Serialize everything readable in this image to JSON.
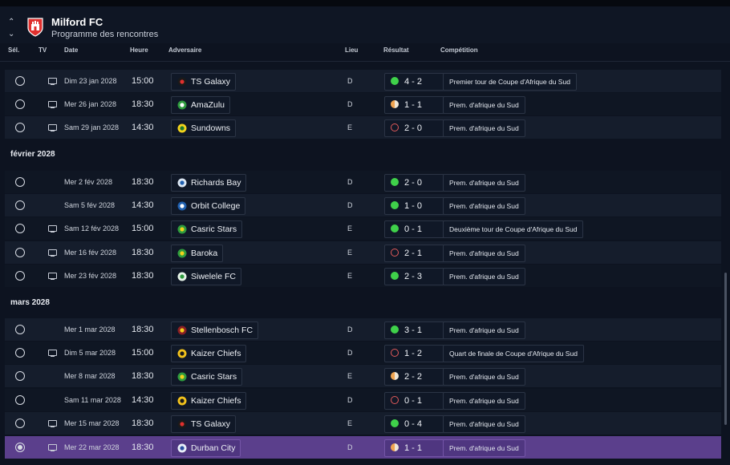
{
  "header": {
    "club_name": "Milford FC",
    "page_title": "Programme des rencontres",
    "collapse_icon": "chevron-up-icon",
    "expand_icon": "chevron-down-icon"
  },
  "columns": {
    "sel": "Sél.",
    "tv": "TV",
    "date": "Date",
    "time": "Heure",
    "opponent": "Adversaire",
    "venue": "Lieu",
    "result": "Résultat",
    "competition": "Compétition"
  },
  "months": {
    "february": "février 2028",
    "march": "mars 2028"
  },
  "fixtures": [
    {
      "tv": true,
      "date": "Dim 23 jan 2028",
      "time": "15:00",
      "opponent": "TS Galaxy",
      "venue": "D",
      "outcome": "win",
      "score": "4 - 2",
      "competition": "Premier tour de Coupe d'Afrique du Sud",
      "badge_color": "#1a1a1a",
      "badge_accent": "#e0302e"
    },
    {
      "tv": true,
      "date": "Mer 26 jan 2028",
      "time": "18:30",
      "opponent": "AmaZulu",
      "venue": "D",
      "outcome": "draw",
      "score": "1 - 1",
      "competition": "Prem. d'afrique du Sud",
      "badge_color": "#2e9b3e",
      "badge_accent": "#ffffff"
    },
    {
      "tv": true,
      "date": "Sam 29 jan 2028",
      "time": "14:30",
      "opponent": "Sundowns",
      "venue": "E",
      "outcome": "loss",
      "score": "2 - 0",
      "competition": "Prem. d'afrique du Sud",
      "badge_color": "#f2d21c",
      "badge_accent": "#1d7a2e"
    },
    {
      "tv": false,
      "date": "Mer 2 fév 2028",
      "time": "18:30",
      "opponent": "Richards Bay",
      "venue": "D",
      "outcome": "win",
      "score": "2 - 0",
      "competition": "Prem. d'afrique du Sud",
      "badge_color": "#dbe6f2",
      "badge_accent": "#1f5fae"
    },
    {
      "tv": false,
      "date": "Sam 5 fév 2028",
      "time": "14:30",
      "opponent": "Orbit College",
      "venue": "D",
      "outcome": "win",
      "score": "1 - 0",
      "competition": "Prem. d'afrique du Sud",
      "badge_color": "#1f5fae",
      "badge_accent": "#ffffff"
    },
    {
      "tv": true,
      "date": "Sam 12 fév 2028",
      "time": "15:00",
      "opponent": "Casric Stars",
      "venue": "E",
      "outcome": "win",
      "score": "0 - 1",
      "competition": "Deuxième tour de Coupe d'Afrique du Sud",
      "badge_color": "#2e9b3e",
      "badge_accent": "#f2d21c"
    },
    {
      "tv": true,
      "date": "Mer 16 fév 2028",
      "time": "18:30",
      "opponent": "Baroka",
      "venue": "E",
      "outcome": "loss",
      "score": "2 - 1",
      "competition": "Prem. d'afrique du Sud",
      "badge_color": "#2e9b3e",
      "badge_accent": "#f2d21c"
    },
    {
      "tv": true,
      "date": "Mer 23 fév 2028",
      "time": "18:30",
      "opponent": "Siwelele FC",
      "venue": "E",
      "outcome": "win",
      "score": "2 - 3",
      "competition": "Prem. d'afrique du Sud",
      "badge_color": "#e6f2e8",
      "badge_accent": "#2e9b3e"
    },
    {
      "tv": false,
      "date": "Mer 1 mar 2028",
      "time": "18:30",
      "opponent": "Stellenbosch FC",
      "venue": "D",
      "outcome": "win",
      "score": "3 - 1",
      "competition": "Prem. d'afrique du Sud",
      "badge_color": "#8a1f24",
      "badge_accent": "#f2d21c"
    },
    {
      "tv": true,
      "date": "Dim 5 mar 2028",
      "time": "15:00",
      "opponent": "Kaizer Chiefs",
      "venue": "D",
      "outcome": "loss",
      "score": "1 - 2",
      "competition": "Quart de finale de Coupe d'Afrique du Sud",
      "badge_color": "#f2c21c",
      "badge_accent": "#1a1a1a"
    },
    {
      "tv": false,
      "date": "Mer 8 mar 2028",
      "time": "18:30",
      "opponent": "Casric Stars",
      "venue": "E",
      "outcome": "draw",
      "score": "2 - 2",
      "competition": "Prem. d'afrique du Sud",
      "badge_color": "#2e9b3e",
      "badge_accent": "#f2d21c"
    },
    {
      "tv": false,
      "date": "Sam 11 mar 2028",
      "time": "14:30",
      "opponent": "Kaizer Chiefs",
      "venue": "D",
      "outcome": "loss",
      "score": "0 - 1",
      "competition": "Prem. d'afrique du Sud",
      "badge_color": "#f2c21c",
      "badge_accent": "#1a1a1a"
    },
    {
      "tv": true,
      "date": "Mer 15 mar 2028",
      "time": "18:30",
      "opponent": "TS Galaxy",
      "venue": "E",
      "outcome": "win",
      "score": "0 - 4",
      "competition": "Prem. d'afrique du Sud",
      "badge_color": "#1a1a1a",
      "badge_accent": "#e0302e"
    },
    {
      "tv": true,
      "date": "Mer 22 mar 2028",
      "time": "18:30",
      "opponent": "Durban City",
      "venue": "D",
      "outcome": "draw",
      "score": "1 - 1",
      "competition": "Prem. d'afrique du Sud",
      "badge_color": "#e8eef8",
      "badge_accent": "#2a4fa0",
      "selected": true
    }
  ],
  "colors": {
    "background": "#0d1320",
    "row_even": "#151d2c",
    "row_odd": "#0f1623",
    "selected_row": "#5b3f8c",
    "win": "#3fd14a",
    "draw": "#f0a450",
    "loss": "#e25a5a"
  }
}
